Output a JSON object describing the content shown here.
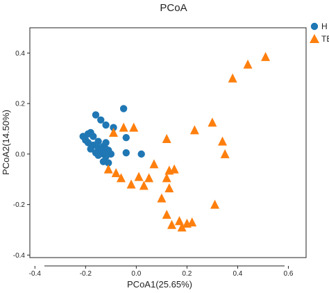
{
  "chart_data": {
    "type": "scatter",
    "title": "PCoA",
    "xlabel": "PCoA1(25.65%)",
    "ylabel": "PCoA2(14.50%)",
    "xlim": [
      -0.42,
      0.67
    ],
    "ylim": [
      -0.41,
      0.5
    ],
    "xticks": [
      -0.4,
      -0.2,
      0,
      0.2,
      0.4,
      0.6
    ],
    "yticks": [
      -0.4,
      -0.2,
      0,
      0.2,
      0.4
    ],
    "xtick_labels": [
      "-0.4",
      "-0.2",
      "0.0",
      "0.2",
      "0.4",
      "0.6"
    ],
    "ytick_labels": [
      "-0.4",
      "-0.2",
      "0.0",
      "0.2",
      "0.4"
    ],
    "grid": false,
    "legend_position": "top-right",
    "series": [
      {
        "name": "H",
        "color": "#1f77b4",
        "marker": "circle",
        "points": [
          [
            -0.05,
            0.18
          ],
          [
            -0.16,
            0.155
          ],
          [
            -0.14,
            0.135
          ],
          [
            -0.12,
            0.115
          ],
          [
            -0.09,
            0.105
          ],
          [
            -0.18,
            0.085
          ],
          [
            -0.19,
            0.08
          ],
          [
            -0.21,
            0.07
          ],
          [
            -0.17,
            0.07
          ],
          [
            -0.2,
            0.055
          ],
          [
            -0.15,
            0.05
          ],
          [
            -0.19,
            0.045
          ],
          [
            -0.12,
            0.045
          ],
          [
            -0.04,
            0.065
          ],
          [
            -0.17,
            0.035
          ],
          [
            -0.13,
            0.03
          ],
          [
            -0.15,
            0.025
          ],
          [
            -0.12,
            0.02
          ],
          [
            -0.18,
            0.02
          ],
          [
            -0.14,
            0.015
          ],
          [
            -0.11,
            0.015
          ],
          [
            -0.16,
            0.005
          ],
          [
            -0.13,
            0.0
          ],
          [
            -0.1,
            0.0
          ],
          [
            -0.15,
            -0.005
          ],
          [
            -0.12,
            -0.01
          ],
          [
            -0.13,
            -0.03
          ],
          [
            -0.11,
            -0.035
          ],
          [
            -0.04,
            0.005
          ],
          [
            0.02,
            0.0
          ]
        ]
      },
      {
        "name": "TBC",
        "color": "#ff7f0e",
        "marker": "triangle",
        "points": [
          [
            0.51,
            0.385
          ],
          [
            0.44,
            0.355
          ],
          [
            0.38,
            0.3
          ],
          [
            -0.05,
            0.105
          ],
          [
            -0.01,
            0.105
          ],
          [
            -0.09,
            0.085
          ],
          [
            0.23,
            0.095
          ],
          [
            0.3,
            0.125
          ],
          [
            0.12,
            0.06
          ],
          [
            0.34,
            0.05
          ],
          [
            0.35,
            0.0
          ],
          [
            0.07,
            -0.04
          ],
          [
            0.15,
            -0.06
          ],
          [
            0.13,
            -0.065
          ],
          [
            -0.11,
            -0.06
          ],
          [
            -0.08,
            -0.075
          ],
          [
            -0.06,
            -0.095
          ],
          [
            0.01,
            -0.09
          ],
          [
            0.05,
            -0.095
          ],
          [
            -0.02,
            -0.12
          ],
          [
            0.03,
            -0.125
          ],
          [
            0.12,
            -0.095
          ],
          [
            0.13,
            -0.135
          ],
          [
            0.1,
            -0.175
          ],
          [
            0.31,
            -0.2
          ],
          [
            0.12,
            -0.24
          ],
          [
            0.17,
            -0.265
          ],
          [
            0.14,
            -0.28
          ],
          [
            0.2,
            -0.275
          ],
          [
            0.22,
            -0.27
          ],
          [
            0.18,
            -0.29
          ]
        ]
      }
    ]
  }
}
